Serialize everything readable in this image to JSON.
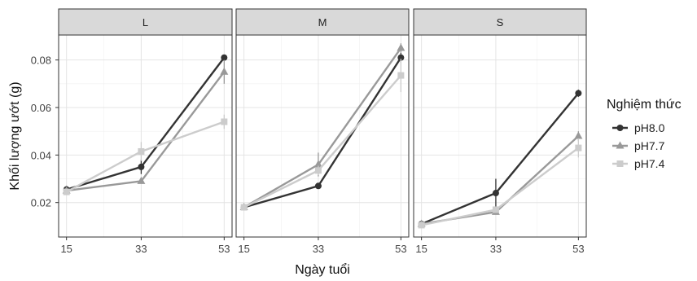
{
  "chart_data": {
    "type": "line",
    "facets": [
      "L",
      "M",
      "S"
    ],
    "x_ticks": [
      15,
      33,
      53
    ],
    "xlabel": "Ngày tuổi",
    "ylabel": "Khối lượng ướt (g)",
    "y_ticks": [
      "0.02",
      "0.04",
      "0.06",
      "0.08"
    ],
    "ylim": [
      0.0055,
      0.0905
    ],
    "xlim": [
      13.1,
      54.9
    ],
    "grid": true,
    "legend_title": "Nghiệm thức",
    "legend_placement": "right",
    "series": [
      {
        "name": "pH8.0",
        "color": "#333333",
        "marker": "circle",
        "x": [
          15,
          33,
          53
        ],
        "values": {
          "L": [
            0.0255,
            0.035,
            0.081
          ],
          "M": [
            0.018,
            0.027,
            0.081
          ],
          "S": [
            0.011,
            0.024,
            0.066
          ]
        },
        "error": {
          "L": [
            0.0015,
            0.003,
            0.001
          ],
          "M": [
            0.001,
            0.001,
            0.002
          ],
          "S": [
            0.001,
            0.006,
            0.0015
          ]
        }
      },
      {
        "name": "pH7.7",
        "color": "#999999",
        "marker": "triangle",
        "x": [
          15,
          33,
          53
        ],
        "values": {
          "L": [
            0.025,
            0.029,
            0.075
          ],
          "M": [
            0.018,
            0.036,
            0.085
          ],
          "S": [
            0.011,
            0.016,
            0.048
          ]
        },
        "error": {
          "L": [
            0.001,
            0.001,
            0.005
          ],
          "M": [
            0.001,
            0.005,
            0.002
          ],
          "S": [
            0.001,
            0.001,
            0.002
          ]
        }
      },
      {
        "name": "pH7.4",
        "color": "#cccccc",
        "marker": "square",
        "x": [
          15,
          33,
          53
        ],
        "values": {
          "L": [
            0.0245,
            0.0415,
            0.054
          ],
          "M": [
            0.018,
            0.0335,
            0.0735
          ],
          "S": [
            0.0105,
            0.017,
            0.043
          ]
        },
        "error": {
          "L": [
            0.001,
            0.004,
            0.003
          ],
          "M": [
            0.001,
            0.002,
            0.007
          ],
          "S": [
            0.001,
            0.001,
            0.004
          ]
        }
      }
    ]
  }
}
